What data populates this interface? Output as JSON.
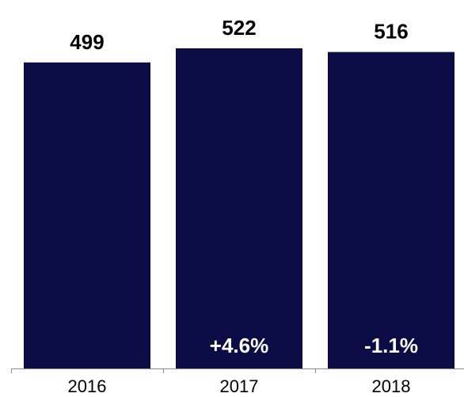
{
  "chart_data": {
    "type": "bar",
    "categories": [
      "2016",
      "2017",
      "2018"
    ],
    "values": [
      499,
      522,
      516
    ],
    "value_labels": [
      "499",
      "522",
      "516"
    ],
    "change_labels": [
      "",
      "+4.6%",
      "-1.1%"
    ],
    "title": "",
    "xlabel": "",
    "ylabel": "",
    "ylim": [
      0,
      522
    ],
    "grid": false,
    "legend": "none",
    "colors": {
      "bar": "#0b0b45",
      "axis": "#8c8c8c",
      "value_text": "#000000",
      "change_text": "#ffffff"
    }
  }
}
